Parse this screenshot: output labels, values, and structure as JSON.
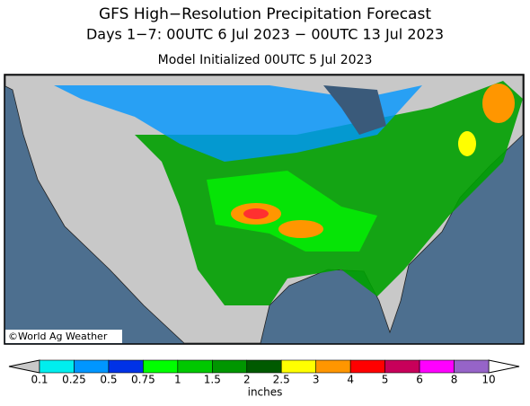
{
  "header": {
    "title": "GFS High−Resolution Precipitation Forecast",
    "subtitle": "Days 1−7: 00UTC 6 Jul 2023 − 00UTC 13 Jul 2023",
    "initialized": "Model Initialized 00UTC 5 Jul 2023"
  },
  "map": {
    "credit": "©World Ag Weather"
  },
  "legend": {
    "unit": "inches",
    "labels": [
      "0.1",
      "0.25",
      "0.5",
      "0.75",
      "1",
      "1.5",
      "2",
      "2.5",
      "3",
      "4",
      "5",
      "6",
      "8",
      "10"
    ],
    "below_color": "#c8c8c8",
    "above_color": "#ffffff",
    "colors": [
      "#00eeee",
      "#0096ff",
      "#0032e6",
      "#00ff00",
      "#00c800",
      "#009600",
      "#005a00",
      "#ffff00",
      "#ff9600",
      "#ff0000",
      "#c8005a",
      "#ff00ff",
      "#9664c8"
    ]
  }
}
